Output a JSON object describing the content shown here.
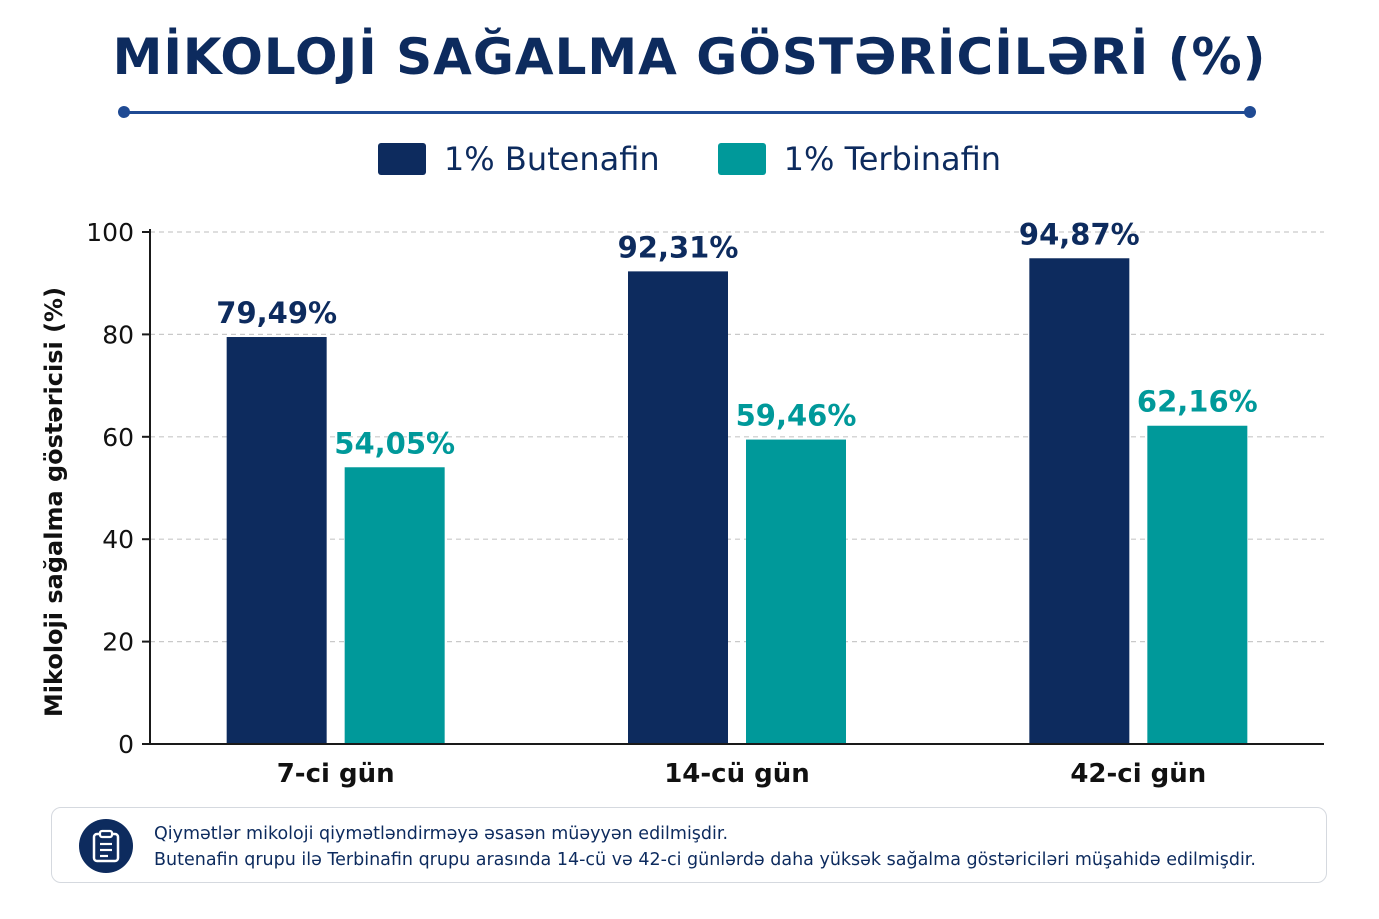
{
  "chart_data": {
    "type": "bar",
    "title": "MİKOLOJİ SAĞALMA GÖSTƏRİCİLƏRİ (%)",
    "categories": [
      "7-ci gün",
      "14-cü gün",
      "42-ci gün"
    ],
    "series": [
      {
        "name": "1% Butenafin",
        "values": [
          79.49,
          92.31,
          94.87
        ],
        "labels": [
          "79,49%",
          "92,31%",
          "94,87%"
        ],
        "color": "#0d2b5e"
      },
      {
        "name": "1% Terbinafin",
        "values": [
          54.05,
          59.46,
          62.16
        ],
        "labels": [
          "54,05%",
          "59,46%",
          "62,16%"
        ],
        "color": "#00999a"
      }
    ],
    "xlabel": "",
    "ylabel": "Mikoloji sağalma göstəricisi (%)",
    "ylim": [
      0,
      100
    ],
    "yticks": [
      0,
      20,
      40,
      60,
      80,
      100
    ],
    "grid": true,
    "legend": "top-center"
  },
  "note": {
    "icon": "clipboard-icon",
    "line1": "Qiymətlər mikoloji qiymətləndirməyə əsasən müəyyən edilmişdir.",
    "line2": "Butenafin qrupu ilə Terbinafin qrupu arasında 14-cü və 42-ci günlərdə daha yüksək sağalma göstəriciləri müşahidə edilmişdir."
  }
}
